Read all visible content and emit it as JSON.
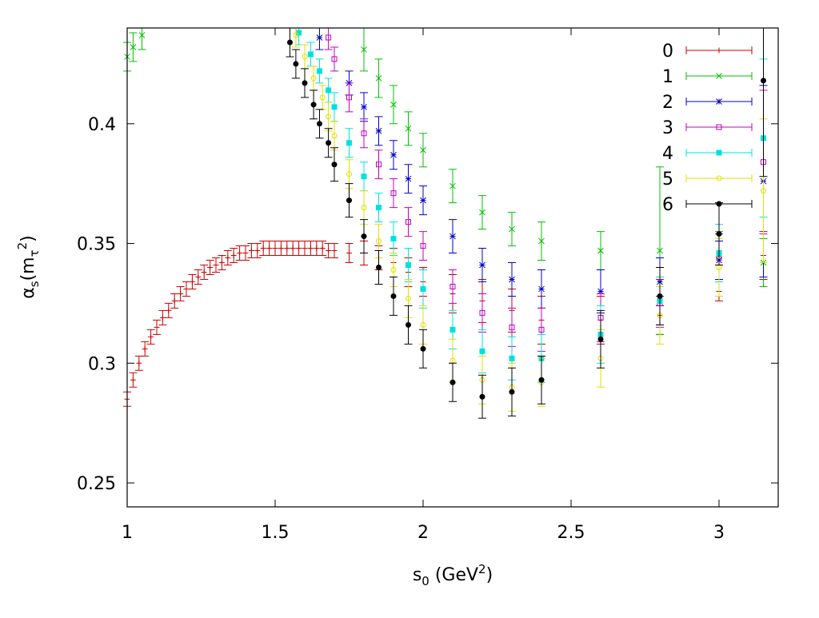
{
  "chart_data": {
    "type": "scatter",
    "title": "",
    "xlabel": "s",
    "xlabel_sub": "0",
    "xlabel_unit_pre": " (GeV",
    "xlabel_unit_sup": "2",
    "xlabel_unit_post": ")",
    "ylabel": "α",
    "ylabel_sub": "s",
    "ylabel_arg_pre": "(m",
    "ylabel_arg_sub": "τ",
    "ylabel_arg_sup": "2",
    "ylabel_arg_post": ")",
    "xlim": [
      1.0,
      3.2
    ],
    "ylim": [
      0.24,
      0.44
    ],
    "xticks": [
      1,
      1.5,
      2,
      2.5,
      3
    ],
    "xtick_labels": [
      "1",
      "1.5",
      "2",
      "2.5",
      "3"
    ],
    "yticks": [
      0.25,
      0.3,
      0.35,
      0.4
    ],
    "ytick_labels": [
      "0.25",
      "0.3",
      "0.35",
      "0.4"
    ],
    "grid": false,
    "legend_position": "top-right",
    "series": [
      {
        "name": "0",
        "color": "#cc0000",
        "marker": "plus",
        "x": [
          1.0,
          1.02,
          1.04,
          1.06,
          1.08,
          1.1,
          1.12,
          1.14,
          1.16,
          1.18,
          1.2,
          1.22,
          1.24,
          1.26,
          1.28,
          1.3,
          1.32,
          1.34,
          1.36,
          1.38,
          1.4,
          1.42,
          1.44,
          1.46,
          1.48,
          1.5,
          1.52,
          1.54,
          1.56,
          1.58,
          1.6,
          1.62,
          1.64,
          1.66,
          1.68,
          1.7,
          1.75,
          1.8,
          1.85,
          1.9,
          1.95,
          2.0,
          2.1,
          2.2,
          2.3,
          2.4,
          2.6,
          2.8,
          3.0,
          3.15
        ],
        "y": [
          0.285,
          0.293,
          0.3,
          0.306,
          0.311,
          0.315,
          0.319,
          0.322,
          0.326,
          0.329,
          0.331,
          0.334,
          0.336,
          0.338,
          0.34,
          0.341,
          0.342,
          0.344,
          0.345,
          0.346,
          0.346,
          0.347,
          0.347,
          0.348,
          0.348,
          0.348,
          0.348,
          0.348,
          0.348,
          0.348,
          0.348,
          0.348,
          0.348,
          0.348,
          0.347,
          0.347,
          0.346,
          0.346,
          0.344,
          0.342,
          0.338,
          0.334,
          0.329,
          0.326,
          0.322,
          0.318,
          0.318,
          0.32,
          0.33,
          0.345
        ],
        "err": [
          0.003,
          0.003,
          0.003,
          0.003,
          0.003,
          0.003,
          0.003,
          0.003,
          0.003,
          0.003,
          0.003,
          0.003,
          0.003,
          0.003,
          0.003,
          0.003,
          0.003,
          0.003,
          0.003,
          0.003,
          0.003,
          0.003,
          0.003,
          0.003,
          0.003,
          0.003,
          0.003,
          0.003,
          0.003,
          0.003,
          0.003,
          0.003,
          0.003,
          0.003,
          0.003,
          0.003,
          0.004,
          0.005,
          0.005,
          0.006,
          0.006,
          0.006,
          0.008,
          0.009,
          0.009,
          0.01,
          0.01,
          0.008,
          0.004,
          0.01
        ]
      },
      {
        "name": "1",
        "color": "#00c000",
        "marker": "cross",
        "x": [
          1.0,
          1.02,
          1.05,
          1.8,
          1.85,
          1.9,
          1.95,
          2.0,
          2.1,
          2.2,
          2.3,
          2.4,
          2.6,
          2.8,
          3.0,
          3.15
        ],
        "y": [
          0.428,
          0.432,
          0.437,
          0.431,
          0.419,
          0.408,
          0.398,
          0.389,
          0.374,
          0.363,
          0.356,
          0.351,
          0.347,
          0.347,
          0.345,
          0.342
        ],
        "err": [
          0.006,
          0.006,
          0.006,
          0.009,
          0.008,
          0.008,
          0.007,
          0.007,
          0.007,
          0.007,
          0.007,
          0.008,
          0.008,
          0.035,
          0.01,
          0.01
        ]
      },
      {
        "name": "2",
        "color": "#0000cc",
        "marker": "star",
        "x": [
          1.65,
          1.75,
          1.8,
          1.85,
          1.9,
          1.95,
          2.0,
          2.1,
          2.2,
          2.3,
          2.4,
          2.6,
          2.8,
          3.0,
          3.15
        ],
        "y": [
          0.436,
          0.417,
          0.407,
          0.397,
          0.387,
          0.377,
          0.368,
          0.353,
          0.341,
          0.335,
          0.331,
          0.33,
          0.334,
          0.343,
          0.376
        ],
        "err": [
          0.005,
          0.005,
          0.006,
          0.006,
          0.006,
          0.006,
          0.006,
          0.007,
          0.007,
          0.007,
          0.008,
          0.009,
          0.01,
          0.008,
          0.04
        ]
      },
      {
        "name": "3",
        "color": "#c000c0",
        "marker": "square-open",
        "x": [
          1.68,
          1.7,
          1.75,
          1.8,
          1.85,
          1.9,
          1.95,
          2.0,
          2.1,
          2.2,
          2.3,
          2.4,
          2.6,
          2.8,
          3.0,
          3.15
        ],
        "y": [
          0.436,
          0.427,
          0.411,
          0.396,
          0.383,
          0.371,
          0.359,
          0.349,
          0.332,
          0.321,
          0.315,
          0.314,
          0.319,
          0.325,
          0.344,
          0.384
        ],
        "err": [
          0.005,
          0.005,
          0.006,
          0.006,
          0.006,
          0.006,
          0.006,
          0.006,
          0.007,
          0.008,
          0.008,
          0.009,
          0.01,
          0.01,
          0.01,
          0.03
        ]
      },
      {
        "name": "4",
        "color": "#00e0e0",
        "marker": "square-filled",
        "x": [
          1.58,
          1.62,
          1.65,
          1.68,
          1.7,
          1.75,
          1.8,
          1.85,
          1.9,
          1.95,
          2.0,
          2.1,
          2.2,
          2.3,
          2.4,
          2.6,
          2.8,
          3.0,
          3.15
        ],
        "y": [
          0.438,
          0.429,
          0.422,
          0.414,
          0.407,
          0.392,
          0.378,
          0.365,
          0.352,
          0.341,
          0.331,
          0.314,
          0.305,
          0.302,
          0.302,
          0.312,
          0.326,
          0.346,
          0.394
        ],
        "err": [
          0.005,
          0.005,
          0.005,
          0.005,
          0.006,
          0.006,
          0.006,
          0.006,
          0.007,
          0.007,
          0.008,
          0.008,
          0.009,
          0.009,
          0.01,
          0.012,
          0.01,
          0.012,
          0.033
        ]
      },
      {
        "name": "5",
        "color": "#e0e000",
        "marker": "circle-open",
        "x": [
          1.57,
          1.6,
          1.63,
          1.66,
          1.68,
          1.7,
          1.75,
          1.8,
          1.85,
          1.9,
          1.95,
          2.0,
          2.1,
          2.2,
          2.3,
          2.4,
          2.6,
          2.8,
          3.0,
          3.15
        ],
        "y": [
          0.437,
          0.428,
          0.419,
          0.411,
          0.403,
          0.395,
          0.379,
          0.365,
          0.351,
          0.339,
          0.327,
          0.316,
          0.301,
          0.293,
          0.29,
          0.292,
          0.302,
          0.32,
          0.34,
          0.372
        ],
        "err": [
          0.005,
          0.005,
          0.005,
          0.005,
          0.006,
          0.006,
          0.006,
          0.007,
          0.007,
          0.007,
          0.008,
          0.008,
          0.009,
          0.01,
          0.01,
          0.01,
          0.012,
          0.012,
          0.012,
          0.03
        ]
      },
      {
        "name": "6",
        "color": "#000000",
        "marker": "circle-filled",
        "x": [
          1.55,
          1.57,
          1.6,
          1.63,
          1.65,
          1.68,
          1.7,
          1.75,
          1.8,
          1.85,
          1.9,
          1.95,
          2.0,
          2.1,
          2.2,
          2.3,
          2.4,
          2.6,
          2.8,
          3.0,
          3.15
        ],
        "y": [
          0.434,
          0.425,
          0.417,
          0.408,
          0.4,
          0.392,
          0.383,
          0.368,
          0.353,
          0.34,
          0.328,
          0.316,
          0.306,
          0.292,
          0.286,
          0.288,
          0.293,
          0.31,
          0.328,
          0.354,
          0.418
        ],
        "err": [
          0.006,
          0.006,
          0.006,
          0.006,
          0.006,
          0.006,
          0.007,
          0.007,
          0.007,
          0.007,
          0.008,
          0.008,
          0.008,
          0.008,
          0.009,
          0.01,
          0.01,
          0.012,
          0.012,
          0.013,
          0.04
        ]
      }
    ]
  }
}
